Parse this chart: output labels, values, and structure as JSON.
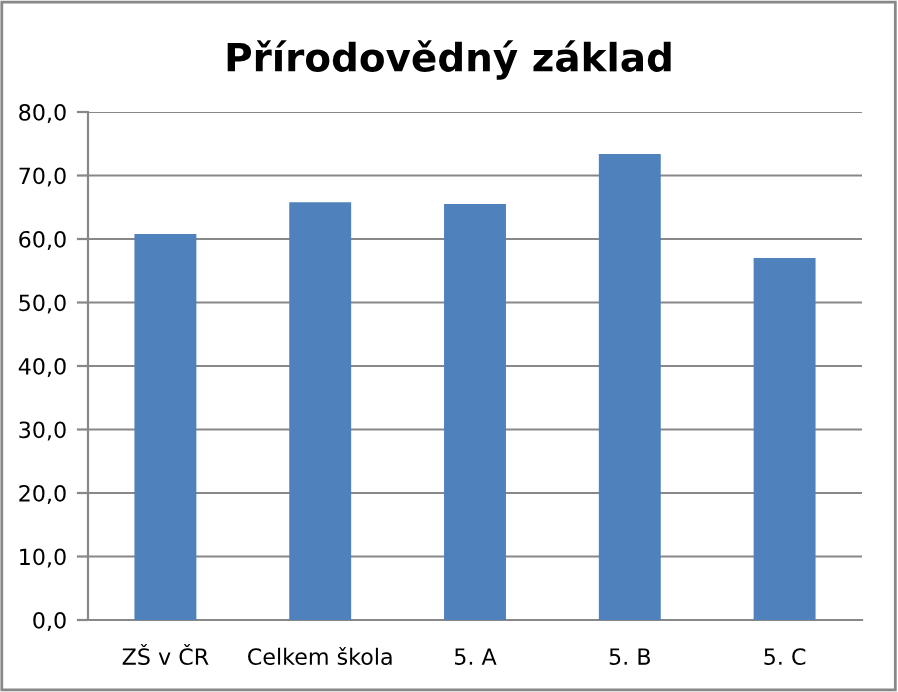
{
  "chart_data": {
    "type": "bar",
    "title": "Přírodovědný základ",
    "categories": [
      "ZŠ v ČR",
      "Celkem škola",
      "5. A",
      "5. B",
      "5. C"
    ],
    "values": [
      60.8,
      65.8,
      65.5,
      73.4,
      57.0
    ],
    "color": "#4f81bd",
    "ylim": [
      0,
      80
    ],
    "yticks": [
      {
        "value": 0,
        "label": "0,0"
      },
      {
        "value": 10,
        "label": "10,0"
      },
      {
        "value": 20,
        "label": "20,0"
      },
      {
        "value": 30,
        "label": "30,0"
      },
      {
        "value": 40,
        "label": "40,0"
      },
      {
        "value": 50,
        "label": "50,0"
      },
      {
        "value": 60,
        "label": "60,0"
      },
      {
        "value": 70,
        "label": "70,0"
      },
      {
        "value": 80,
        "label": "80,0"
      }
    ],
    "grid": "y",
    "legend": false
  }
}
